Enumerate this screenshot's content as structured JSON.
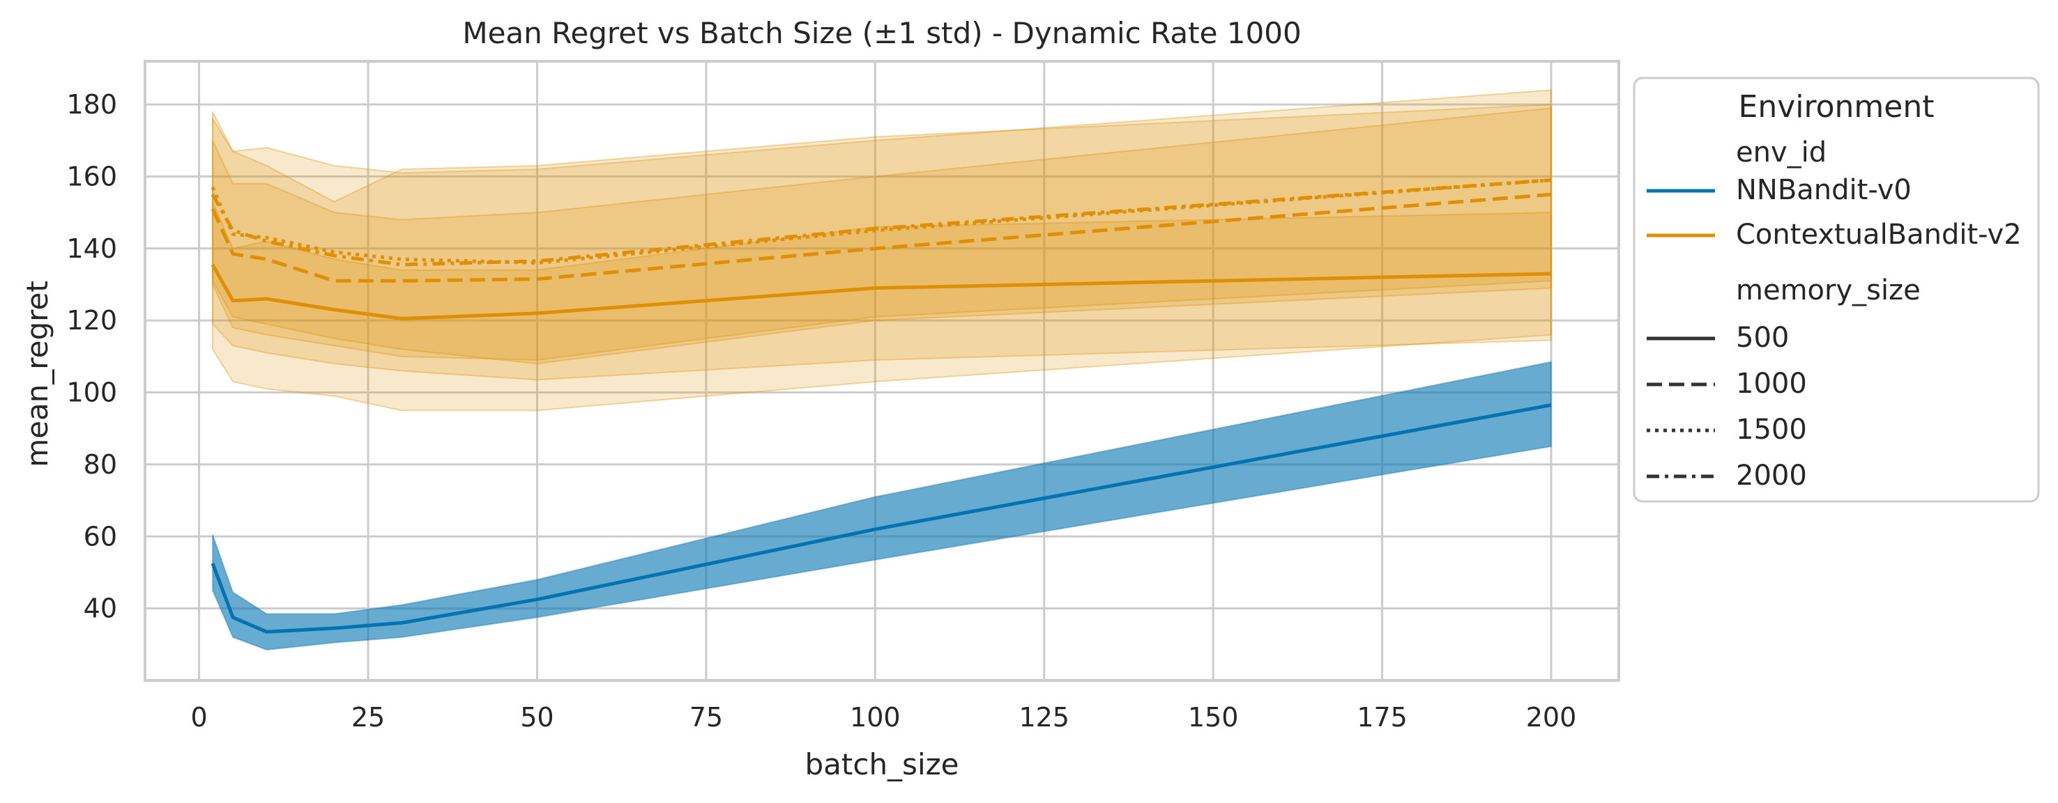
{
  "chart_data": {
    "type": "line",
    "title": "Mean Regret vs Batch Size (±1 std) - Dynamic Rate 1000",
    "xlabel": "batch_size",
    "ylabel": "mean_regret",
    "xlim": [
      -8,
      210
    ],
    "ylim": [
      20,
      192
    ],
    "xticks": [
      0,
      25,
      50,
      75,
      100,
      125,
      150,
      175,
      200
    ],
    "yticks": [
      40,
      60,
      80,
      100,
      120,
      140,
      160,
      180
    ],
    "grid": true,
    "x": [
      2,
      5,
      10,
      20,
      30,
      50,
      100,
      200
    ],
    "legend": {
      "placement": "outside-right",
      "title": "Environment",
      "hue_title": "env_id",
      "style_title": "memory_size",
      "hue_entries": [
        {
          "label": "NNBandit-v0",
          "color": "#0173b2"
        },
        {
          "label": "ContextualBandit-v2",
          "color": "#de8f05"
        }
      ],
      "style_entries": [
        {
          "label": "500",
          "dash": "solid"
        },
        {
          "label": "1000",
          "dash": "dashed"
        },
        {
          "label": "1500",
          "dash": "dotted"
        },
        {
          "label": "2000",
          "dash": "dashdot"
        }
      ]
    },
    "series": [
      {
        "env": "ContextualBandit-v2",
        "memory_size": "500",
        "color": "#de8f05",
        "dash": "solid",
        "mean": [
          135.5,
          125.5,
          126,
          123,
          120.5,
          122,
          129,
          133
        ],
        "lower": [
          119,
          113,
          111,
          108,
          106,
          103.5,
          109,
          114.5
        ],
        "upper": [
          153,
          140,
          142,
          137,
          134,
          134,
          146,
          150
        ]
      },
      {
        "env": "ContextualBandit-v2",
        "memory_size": "1000",
        "color": "#de8f05",
        "dash": "dashed",
        "mean": [
          151,
          138.5,
          137,
          131,
          131,
          131.5,
          140,
          155
        ],
        "lower": [
          130,
          118,
          116,
          113,
          110,
          109,
          121,
          131
        ],
        "upper": [
          170,
          158,
          158,
          150,
          148,
          150,
          160,
          179
        ]
      },
      {
        "env": "ContextualBandit-v2",
        "memory_size": "1500",
        "color": "#de8f05",
        "dash": "dotted",
        "mean": [
          157,
          144,
          143,
          139,
          137,
          136,
          145,
          159
        ],
        "lower": [
          131,
          121,
          119,
          115,
          112,
          108,
          120,
          129
        ],
        "upper": [
          178,
          167,
          168,
          163,
          161,
          162,
          170,
          184
        ]
      },
      {
        "env": "ContextualBandit-v2",
        "memory_size": "2000",
        "color": "#de8f05",
        "dash": "dashdot",
        "mean": [
          155,
          145,
          142,
          138,
          135.5,
          136.5,
          145.5,
          159
        ],
        "lower": [
          112,
          103,
          101,
          99,
          95,
          95,
          103,
          116
        ],
        "upper": [
          176,
          167,
          163,
          153,
          162,
          163,
          171,
          180
        ]
      },
      {
        "env": "NNBandit-v0",
        "memory_size": "500",
        "color": "#0173b2",
        "dash": "solid",
        "mean": [
          52.5,
          37.5,
          33.5,
          34.5,
          36,
          42.5,
          62,
          96.5
        ],
        "lower": [
          45,
          32,
          28.5,
          30.5,
          32,
          37.5,
          53.5,
          85
        ],
        "upper": [
          60.5,
          44.5,
          38.5,
          38.5,
          41,
          48,
          71,
          108.5
        ]
      }
    ]
  }
}
